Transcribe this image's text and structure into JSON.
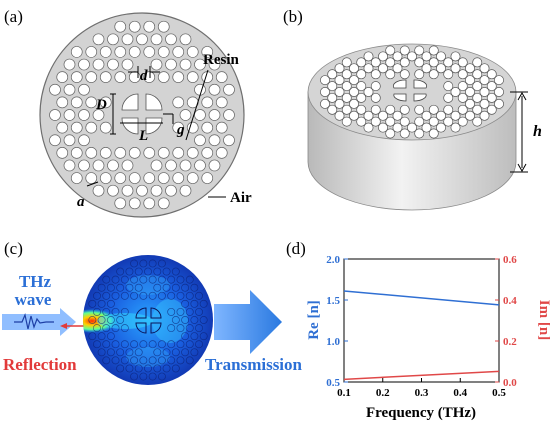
{
  "panels": {
    "a": {
      "label": "(a)",
      "annotations": {
        "resin": "Resin",
        "air": "Air",
        "d_small": "d",
        "D": "D",
        "L": "L",
        "g": "g",
        "a": "a"
      }
    },
    "b": {
      "label": "(b)",
      "annotations": {
        "h": "h"
      }
    },
    "c": {
      "label": "(c)",
      "annotations": {
        "thz_line1": "THz",
        "thz_line2": "wave",
        "reflection": "Reflection",
        "transmission": "Transmission"
      }
    },
    "d": {
      "label": "(d)"
    }
  },
  "colors": {
    "disk": "#d3d3d3",
    "disk_edge": "#6f6f6f",
    "hole": "#ffffff",
    "thz_text": "#2b6fd6",
    "reflection_text": "#e23a3a",
    "arrow_blue": "#3a86e0",
    "re_series": "#2f6fd3",
    "im_series": "#e04848"
  },
  "chart_data": {
    "type": "line",
    "title": "",
    "xlabel": "Frequency (THz)",
    "x": [
      0.1,
      0.5
    ],
    "xlim": [
      0.1,
      0.5
    ],
    "xticks": [
      "0.1",
      "0.2",
      "0.3",
      "0.4",
      "0.5"
    ],
    "ylabel_left": "Re [n]",
    "ylim_left": [
      0.5,
      2.0
    ],
    "yticks_left": [
      "0.5",
      "1.0",
      "1.5",
      "2.0"
    ],
    "ylabel_right": "Im [n]",
    "ylim_right": [
      0.0,
      0.6
    ],
    "yticks_right": [
      "0.0",
      "0.2",
      "0.4",
      "0.6"
    ],
    "series": [
      {
        "name": "Re [n]",
        "axis": "left",
        "values": [
          1.61,
          1.44
        ]
      },
      {
        "name": "Im [n]",
        "axis": "right",
        "values": [
          0.013,
          0.052
        ]
      }
    ],
    "grid": false
  }
}
